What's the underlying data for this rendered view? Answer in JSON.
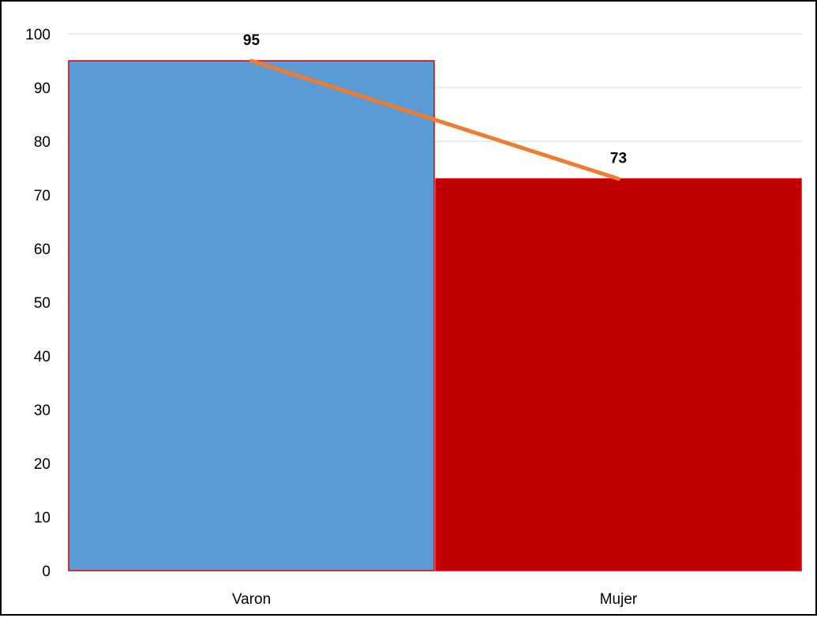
{
  "chart_data": {
    "type": "bar",
    "categories": [
      "Varon",
      "Mujer"
    ],
    "values": [
      95,
      73
    ],
    "data_labels": [
      "95",
      "73"
    ],
    "ylim": [
      0,
      100
    ],
    "y_ticks": [
      0,
      10,
      20,
      30,
      40,
      50,
      60,
      70,
      80,
      90,
      100
    ],
    "y_tick_labels": [
      "0",
      "10",
      "20",
      "30",
      "40",
      "50",
      "60",
      "70",
      "80",
      "90",
      "100"
    ],
    "title": "",
    "xlabel": "",
    "ylabel": "",
    "grid": true,
    "legend": "none",
    "overlay_line": {
      "type": "line",
      "values": [
        95,
        73
      ],
      "color": "#ED7D31"
    },
    "bar_colors": [
      "#5B9BD5",
      "#C00000"
    ],
    "bar_border_color": "#E00000",
    "gridline_color": "#D9D9D9"
  }
}
